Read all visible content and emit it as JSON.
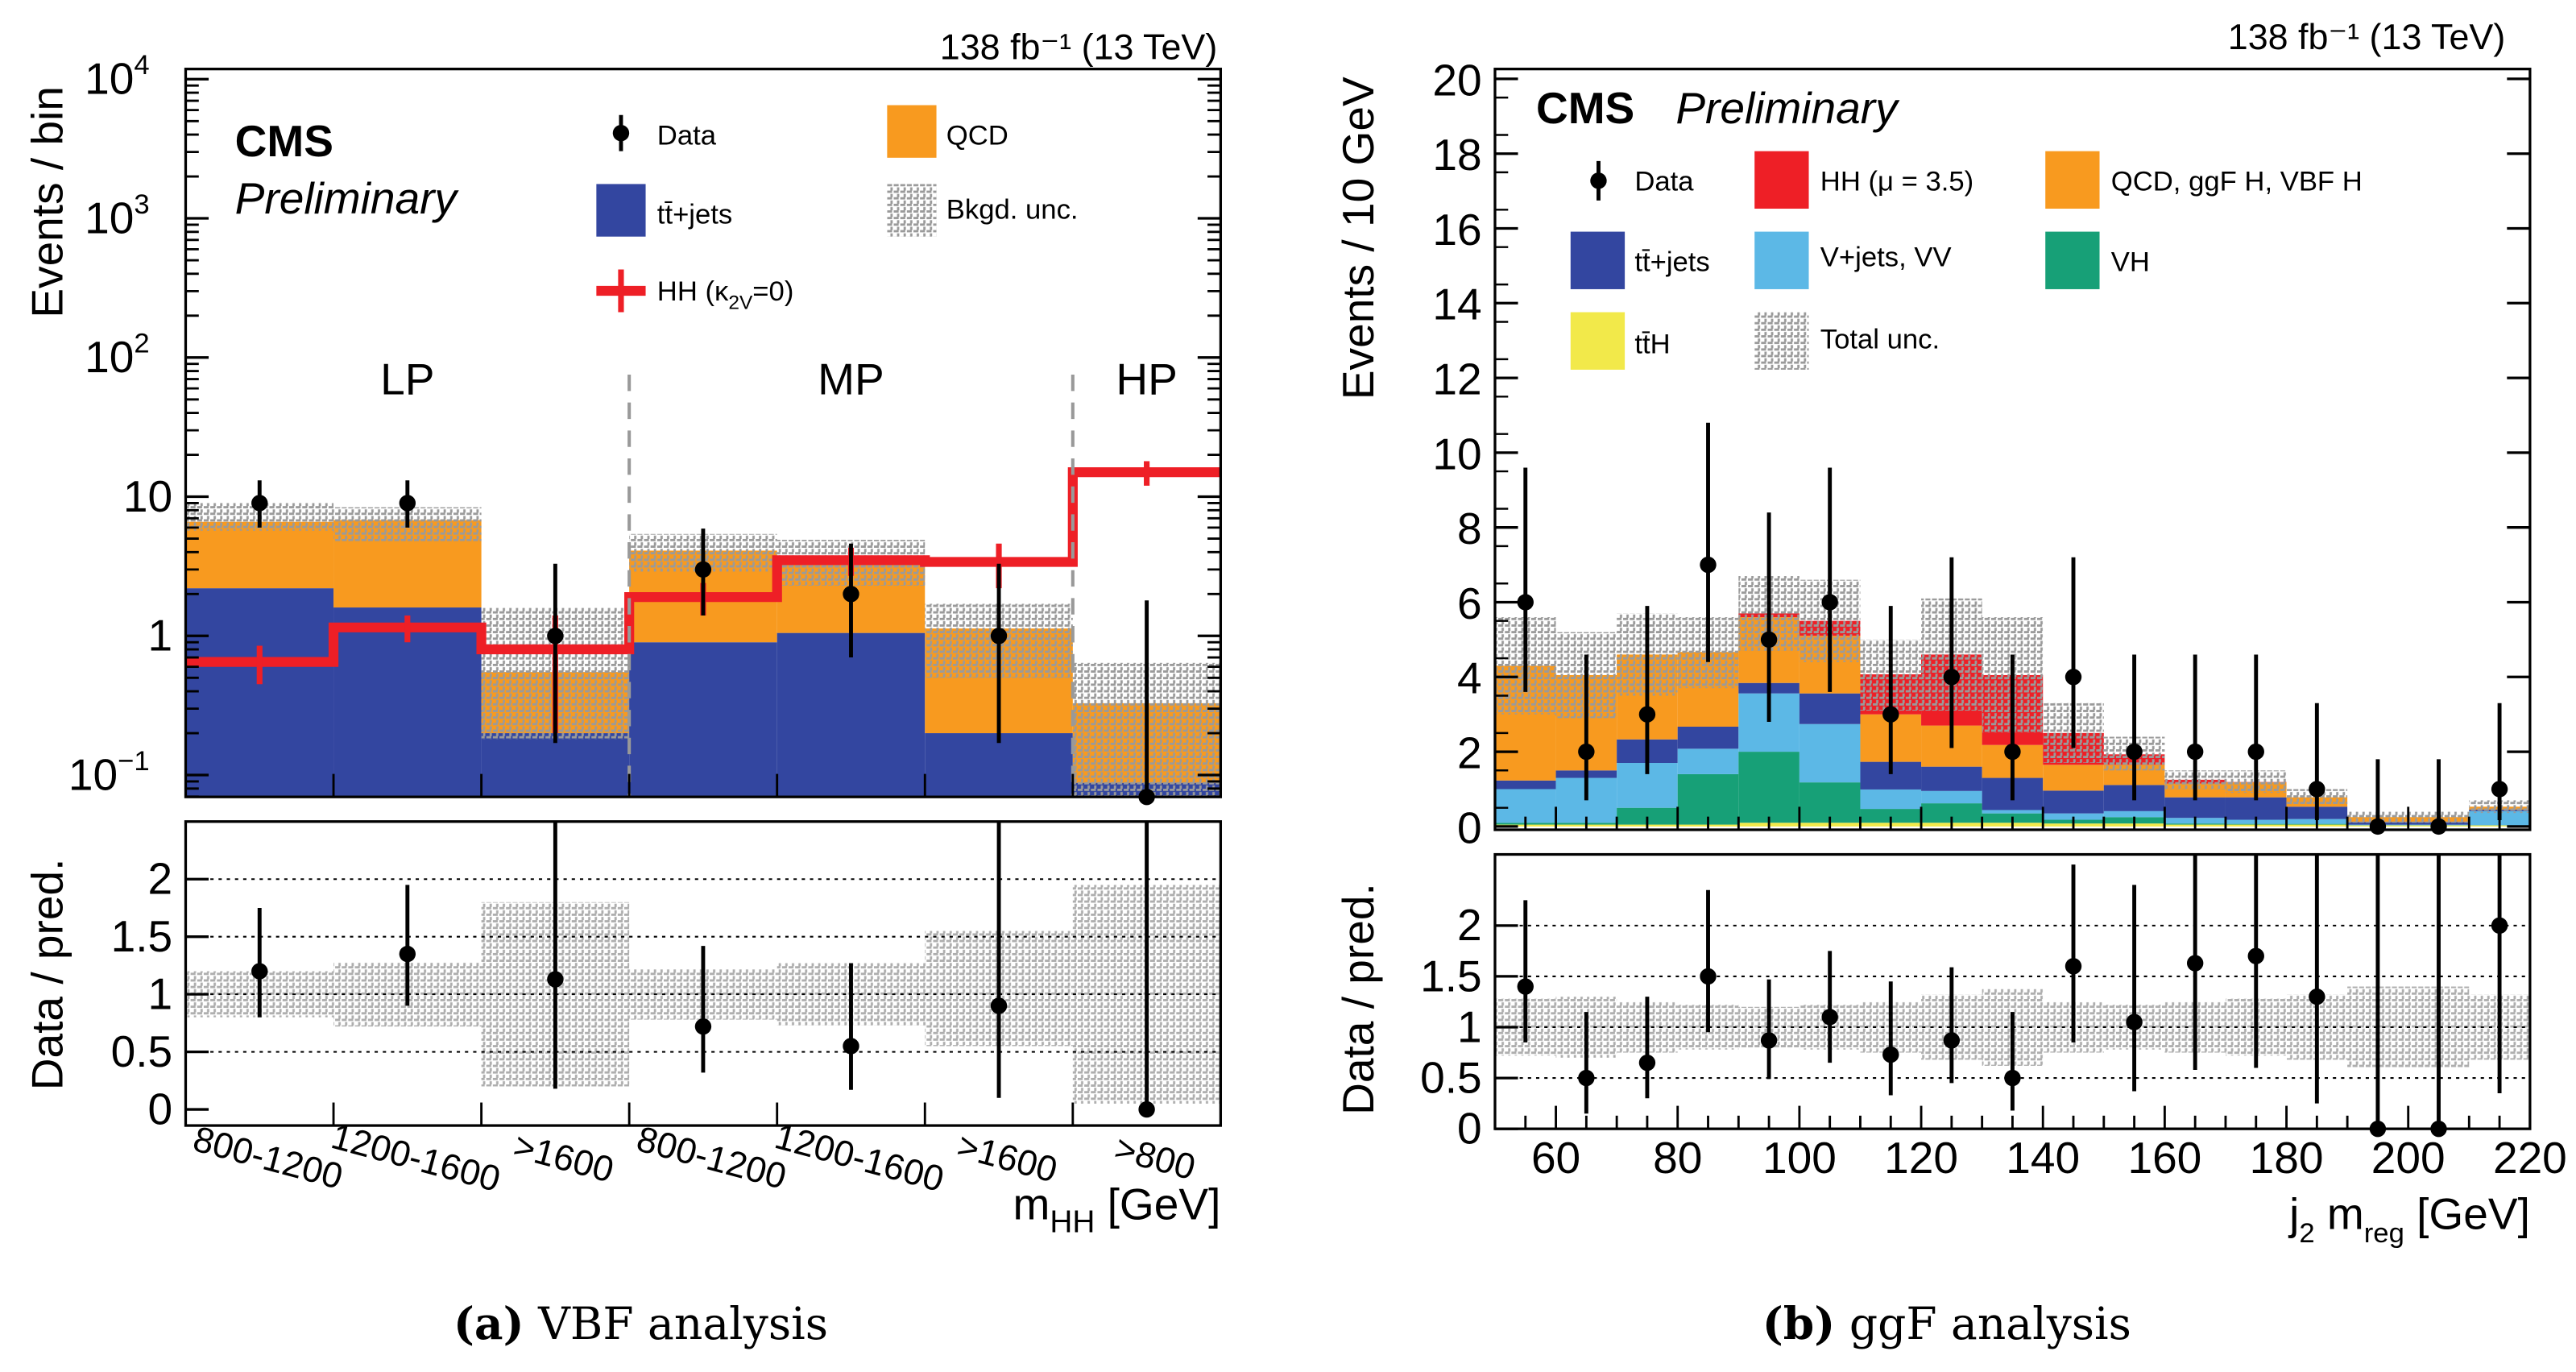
{
  "chart_data": [
    {
      "type": "bar",
      "stacked": true,
      "yscale": "log",
      "panel": "VBF analysis",
      "caption": {
        "letter": "(a)",
        "text": "VBF analysis"
      },
      "lumi": "138 fb⁻¹ (13 TeV)",
      "cms": "CMS",
      "preliminary": "Preliminary",
      "ylabel": "Events / bin",
      "ylim": [
        0.07,
        10000
      ],
      "yticks": [
        {
          "v": 0.1,
          "b": "10",
          "e": "−1"
        },
        {
          "v": 1,
          "b": "1",
          "e": ""
        },
        {
          "v": 10,
          "b": "10",
          "e": ""
        },
        {
          "v": 100,
          "b": "10",
          "e": "2"
        },
        {
          "v": 1000,
          "b": "10",
          "e": "3"
        },
        {
          "v": 10000,
          "b": "10",
          "e": "4"
        }
      ],
      "xlabel": {
        "main": "m",
        "sub": "HH",
        "end": " [GeV]"
      },
      "categories": [
        "800-1200",
        "1200-1600",
        ">1600",
        "800-1200",
        "1200-1600",
        ">1600",
        ">800"
      ],
      "regions": [
        {
          "label": "LP",
          "bins": [
            0,
            2
          ]
        },
        {
          "label": "MP",
          "bins": [
            3,
            5
          ]
        },
        {
          "label": "HP",
          "bins": [
            6,
            6
          ]
        }
      ],
      "series": [
        {
          "name": "tt̄+jets",
          "color": "#3346A0",
          "values": [
            2.2,
            1.6,
            0.2,
            0.9,
            1.05,
            0.2,
            0.088
          ]
        },
        {
          "name": "QCD",
          "color": "#F89A1F",
          "values": [
            4.4,
            5.2,
            0.35,
            3.2,
            2.25,
            0.93,
            0.24
          ]
        }
      ],
      "bkg_unc": {
        "name": "Bkgd. unc.",
        "low": [
          5.7,
          4.8,
          0.18,
          2.9,
          2.3,
          0.5,
          0.07
        ],
        "high": [
          9.0,
          8.4,
          1.6,
          5.4,
          4.9,
          1.7,
          0.64
        ]
      },
      "signal": {
        "name": {
          "main": "HH (κ",
          "sub": "2V",
          "end": "=0)"
        },
        "color": "#EE1F26",
        "values": [
          0.65,
          1.15,
          0.8,
          1.9,
          3.5,
          3.4,
          15
        ],
        "err": [
          0.2,
          0.25,
          0.6,
          0.5,
          0.8,
          1.2,
          3
        ]
      },
      "data": {
        "name": "Data",
        "values": [
          9,
          9,
          1,
          3,
          2,
          1,
          0
        ],
        "err_low": [
          3,
          3,
          0.83,
          1.6,
          1.3,
          0.83,
          0
        ],
        "err_high": [
          4.1,
          4.1,
          2.3,
          2.9,
          2.6,
          2.3,
          1.8
        ]
      },
      "ratio": {
        "ylabel": "Data / pred.",
        "ylim": [
          -0.14,
          2.5
        ],
        "yticks": [
          "0",
          "0.5",
          "1",
          "1.5",
          "2"
        ],
        "values": [
          1.2,
          1.35,
          1.13,
          0.72,
          0.55,
          0.9,
          0
        ],
        "err_low": [
          0.4,
          0.45,
          0.95,
          0.4,
          0.38,
          0.8,
          0
        ],
        "err_high": [
          0.55,
          0.6,
          1.5,
          0.7,
          0.72,
          1.7,
          2.5
        ],
        "unc_low": [
          0.8,
          0.72,
          0.2,
          0.78,
          0.73,
          0.55,
          0.05
        ],
        "unc_high": [
          1.2,
          1.28,
          1.8,
          1.22,
          1.27,
          1.55,
          1.95
        ]
      }
    },
    {
      "type": "bar",
      "stacked": true,
      "panel": "ggF analysis",
      "caption": {
        "letter": "(b)",
        "text": "ggF analysis"
      },
      "lumi": "138 fb⁻¹ (13 TeV)",
      "cms": "CMS",
      "preliminary": "Preliminary",
      "ylabel": "Events / 10 GeV",
      "ylim": [
        0,
        20
      ],
      "yticks": [
        "0",
        "2",
        "4",
        "6",
        "8",
        "10",
        "12",
        "14",
        "16",
        "18",
        "20"
      ],
      "xlabel": {
        "main": "j",
        "sub": "2",
        "mid": " m",
        "sub2": "reg",
        "end": " [GeV]"
      },
      "xlim": [
        50,
        220
      ],
      "xticks": [
        "60",
        "80",
        "100",
        "120",
        "140",
        "160",
        "180",
        "200",
        "220"
      ],
      "x": [
        55,
        65,
        75,
        85,
        95,
        105,
        115,
        125,
        135,
        145,
        155,
        165,
        175,
        185,
        195,
        205,
        215
      ],
      "series": [
        {
          "name": "tt̄H",
          "color": "#F2E94A",
          "values": [
            0.05,
            0.05,
            0.05,
            0.05,
            0.1,
            0.1,
            0.1,
            0.1,
            0.1,
            0.08,
            0.08,
            0.05,
            0.05,
            0.05,
            0.03,
            0.03,
            0.03
          ]
        },
        {
          "name": "VH",
          "color": "#17A077",
          "values": [
            0.05,
            0.05,
            0.45,
            1.35,
            1.9,
            1.08,
            0.37,
            0.52,
            0.25,
            0.1,
            0.17,
            0.03,
            0.02,
            0.02,
            0.0,
            0.0,
            0.0
          ]
        },
        {
          "name": "V+jets, VV",
          "color": "#5CB8E6",
          "values": [
            0.9,
            1.2,
            1.2,
            0.68,
            1.56,
            1.56,
            0.52,
            0.33,
            0.09,
            0.17,
            0.16,
            0.15,
            0.11,
            0.13,
            0.02,
            0.02,
            0.38
          ]
        },
        {
          "name": "tt̄+jets",
          "color": "#3346A0",
          "values": [
            0.23,
            0.2,
            0.63,
            0.59,
            0.28,
            0.82,
            0.74,
            0.65,
            0.86,
            0.61,
            0.7,
            0.55,
            0.6,
            0.33,
            0.07,
            0.07,
            0.04
          ]
        },
        {
          "name": "QCD, ggF H, VBF H",
          "color": "#F89A1F",
          "values": [
            3.07,
            2.55,
            2.27,
            2.0,
            1.76,
            1.54,
            1.27,
            1.1,
            0.88,
            0.69,
            0.54,
            0.37,
            0.4,
            0.25,
            0.13,
            0.13,
            0.08
          ]
        },
        {
          "name": "HH (μ = 3.5)",
          "color": "#EE1F26",
          "values": [
            0,
            0,
            0,
            0,
            0.1,
            0.4,
            1.07,
            1.9,
            1.87,
            0.85,
            0.28,
            0.1,
            0.01,
            0,
            0,
            0,
            0
          ]
        }
      ],
      "total_unc": {
        "name": "Total unc.",
        "high": [
          5.6,
          5.2,
          5.7,
          5.6,
          6.7,
          6.6,
          5.0,
          6.1,
          5.6,
          3.3,
          2.4,
          1.5,
          1.5,
          1.0,
          0.4,
          0.4,
          0.7
        ],
        "low": [
          3.0,
          2.9,
          3.5,
          3.7,
          4.7,
          4.4,
          3.1,
          3.1,
          2.5,
          1.7,
          1.5,
          1.0,
          0.9,
          0.6,
          0.1,
          0.1,
          0.36
        ]
      },
      "data": {
        "name": "Data",
        "values": [
          6,
          2,
          3,
          7,
          5,
          6,
          3,
          4,
          2,
          4,
          2,
          2,
          2,
          1,
          0,
          0,
          1
        ],
        "err_low": [
          2.4,
          1.3,
          1.6,
          2.6,
          2.2,
          2.4,
          1.6,
          1.9,
          1.3,
          1.9,
          1.3,
          1.3,
          1.3,
          0.83,
          0,
          0,
          0.83
        ],
        "err_high": [
          3.6,
          2.6,
          2.9,
          3.8,
          3.4,
          3.6,
          2.9,
          3.2,
          2.6,
          3.2,
          2.6,
          2.6,
          2.6,
          2.3,
          1.8,
          1.8,
          2.3
        ]
      },
      "ratio": {
        "ylabel": "Data / pred.",
        "ylim": [
          0,
          2.7
        ],
        "yticks": [
          "0",
          "0.5",
          "1",
          "1.5",
          "2"
        ],
        "values": [
          1.4,
          0.5,
          0.65,
          1.5,
          0.87,
          1.1,
          0.73,
          0.87,
          0.5,
          1.6,
          1.05,
          1.63,
          1.7,
          1.3,
          0,
          0,
          2.0
        ],
        "err_low": [
          0.55,
          0.35,
          0.35,
          0.55,
          0.38,
          0.45,
          0.4,
          0.42,
          0.32,
          0.75,
          0.68,
          1.05,
          1.1,
          1.05,
          0,
          0,
          1.65
        ],
        "err_high": [
          0.85,
          0.65,
          0.65,
          0.85,
          0.6,
          0.65,
          0.72,
          0.72,
          0.65,
          1.0,
          1.35,
          1.35,
          1.4,
          1.5,
          2.7,
          2.7,
          2.7
        ],
        "unc_low": [
          0.72,
          0.7,
          0.75,
          0.78,
          0.8,
          0.78,
          0.75,
          0.68,
          0.62,
          0.75,
          0.78,
          0.75,
          0.72,
          0.68,
          0.6,
          0.6,
          0.68
        ],
        "unc_high": [
          1.28,
          1.3,
          1.25,
          1.22,
          1.2,
          1.22,
          1.25,
          1.32,
          1.38,
          1.25,
          1.22,
          1.25,
          1.28,
          1.32,
          1.4,
          1.4,
          1.32
        ]
      }
    }
  ]
}
